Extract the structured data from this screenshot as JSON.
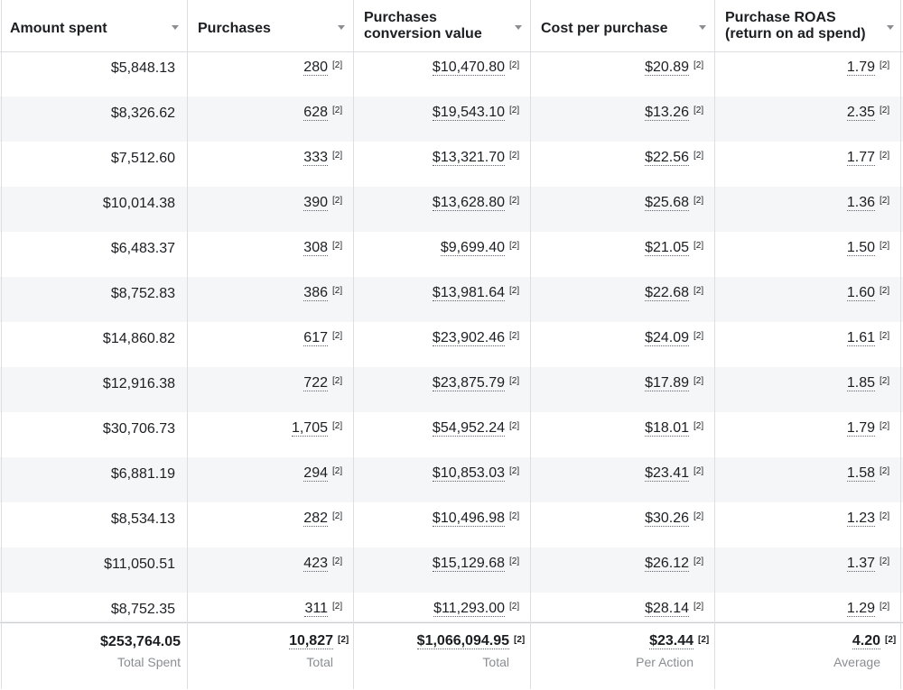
{
  "columns": [
    {
      "label": "Amount spent"
    },
    {
      "label": "Purchases"
    },
    {
      "label": "Purchases conversion value"
    },
    {
      "label": "Cost per purchase"
    },
    {
      "label": "Purchase ROAS (return on ad spend)"
    }
  ],
  "footnote": "[2]",
  "rows": [
    [
      "$5,848.13",
      "280",
      "$10,470.80",
      "$20.89",
      "1.79"
    ],
    [
      "$8,326.62",
      "628",
      "$19,543.10",
      "$13.26",
      "2.35"
    ],
    [
      "$7,512.60",
      "333",
      "$13,321.70",
      "$22.56",
      "1.77"
    ],
    [
      "$10,014.38",
      "390",
      "$13,628.80",
      "$25.68",
      "1.36"
    ],
    [
      "$6,483.37",
      "308",
      "$9,699.40",
      "$21.05",
      "1.50"
    ],
    [
      "$8,752.83",
      "386",
      "$13,981.64",
      "$22.68",
      "1.60"
    ],
    [
      "$14,860.82",
      "617",
      "$23,902.46",
      "$24.09",
      "1.61"
    ],
    [
      "$12,916.38",
      "722",
      "$23,875.79",
      "$17.89",
      "1.85"
    ],
    [
      "$30,706.73",
      "1,705",
      "$54,952.24",
      "$18.01",
      "1.79"
    ],
    [
      "$6,881.19",
      "294",
      "$10,853.03",
      "$23.41",
      "1.58"
    ],
    [
      "$8,534.13",
      "282",
      "$10,496.98",
      "$30.26",
      "1.23"
    ],
    [
      "$11,050.51",
      "423",
      "$15,129.68",
      "$26.12",
      "1.37"
    ],
    [
      "$8,752.35",
      "311",
      "$11,293.00",
      "$28.14",
      "1.29"
    ]
  ],
  "totals": [
    {
      "value": "$253,764.05",
      "sub": "Total Spent"
    },
    {
      "value": "10,827",
      "sub": "Total"
    },
    {
      "value": "$1,066,094.95",
      "sub": "Total"
    },
    {
      "value": "$23.44",
      "sub": "Per Action"
    },
    {
      "value": "4.20",
      "sub": "Average"
    }
  ]
}
